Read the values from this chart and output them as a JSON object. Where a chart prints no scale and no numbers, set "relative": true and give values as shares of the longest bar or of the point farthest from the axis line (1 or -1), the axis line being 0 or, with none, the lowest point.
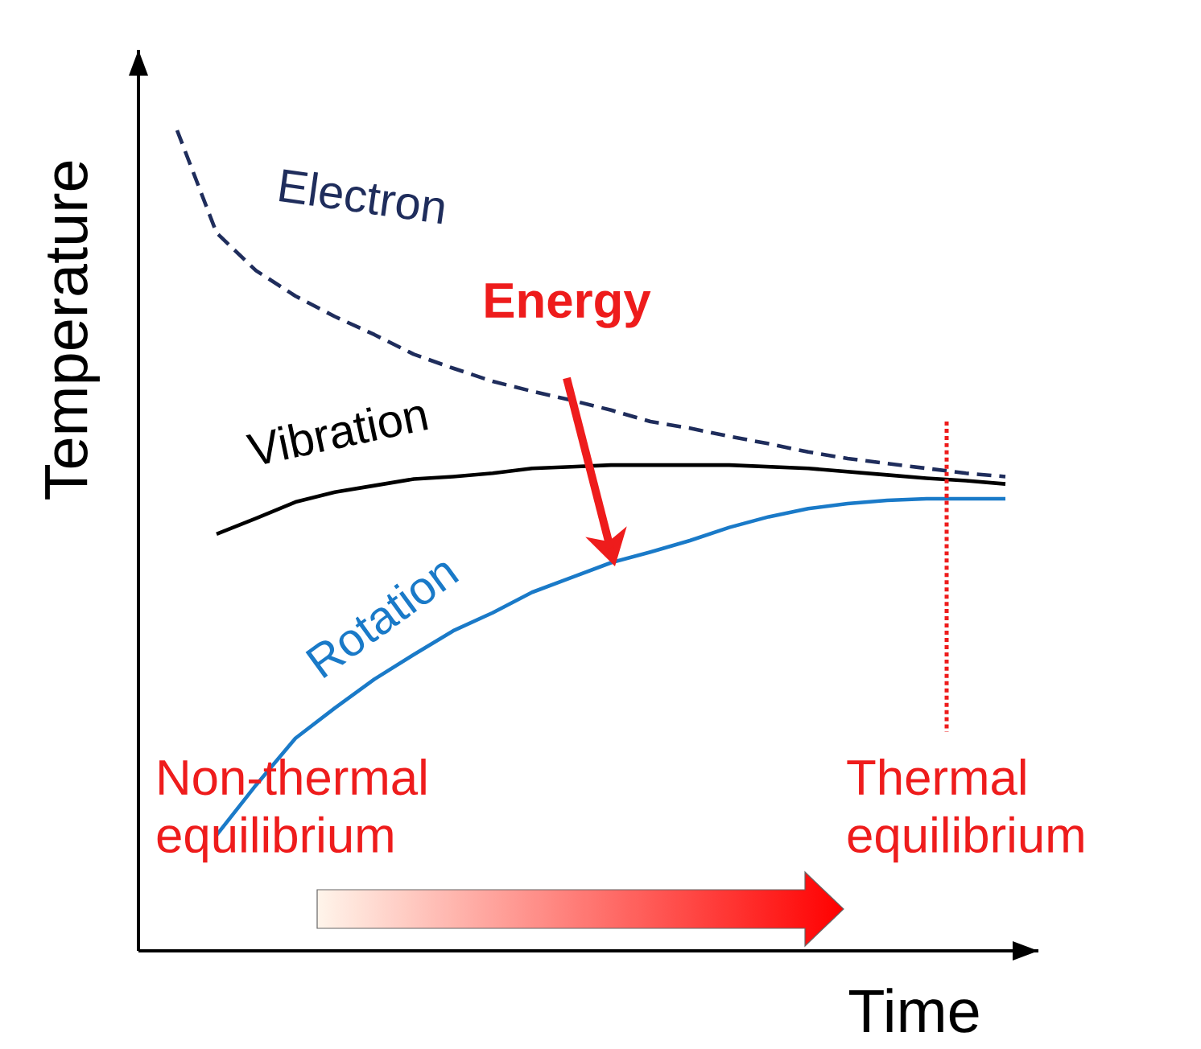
{
  "chart_data": {
    "type": "line",
    "relative": true,
    "xlabel": "Time",
    "ylabel": "Temperature",
    "categories": [
      null,
      null,
      null,
      null,
      null,
      null,
      null,
      null,
      null,
      null,
      null,
      null,
      null,
      null,
      null,
      null,
      null,
      null,
      null,
      null,
      null,
      null
    ],
    "series": [
      {
        "name": "Electron",
        "color": "#1f2d5c",
        "line_style": "dashed",
        "values": [
          1.0,
          0.875,
          0.829,
          0.798,
          0.773,
          0.751,
          0.727,
          0.71,
          0.694,
          0.682,
          0.671,
          0.659,
          0.645,
          0.637,
          0.627,
          0.618,
          0.608,
          0.6,
          0.594,
          0.588,
          0.582,
          0.578
        ]
      },
      {
        "name": "Vibration",
        "color": "#000000",
        "values": [
          null,
          0.508,
          0.527,
          0.547,
          0.559,
          0.567,
          0.575,
          0.578,
          0.582,
          0.588,
          0.59,
          0.592,
          0.592,
          0.592,
          0.592,
          0.59,
          0.588,
          0.584,
          0.58,
          0.576,
          0.573,
          0.569
        ]
      },
      {
        "name": "Rotation",
        "color": "#1a7ac8",
        "values": [
          null,
          0.141,
          0.202,
          0.259,
          0.296,
          0.331,
          0.361,
          0.39,
          0.412,
          0.437,
          0.455,
          0.473,
          0.486,
          0.5,
          0.516,
          0.529,
          0.539,
          0.545,
          0.549,
          0.551,
          0.551,
          0.551
        ]
      }
    ],
    "annotations": [
      "Energy",
      "Non-thermal equilibrium",
      "Thermal equilibrium"
    ]
  }
}
